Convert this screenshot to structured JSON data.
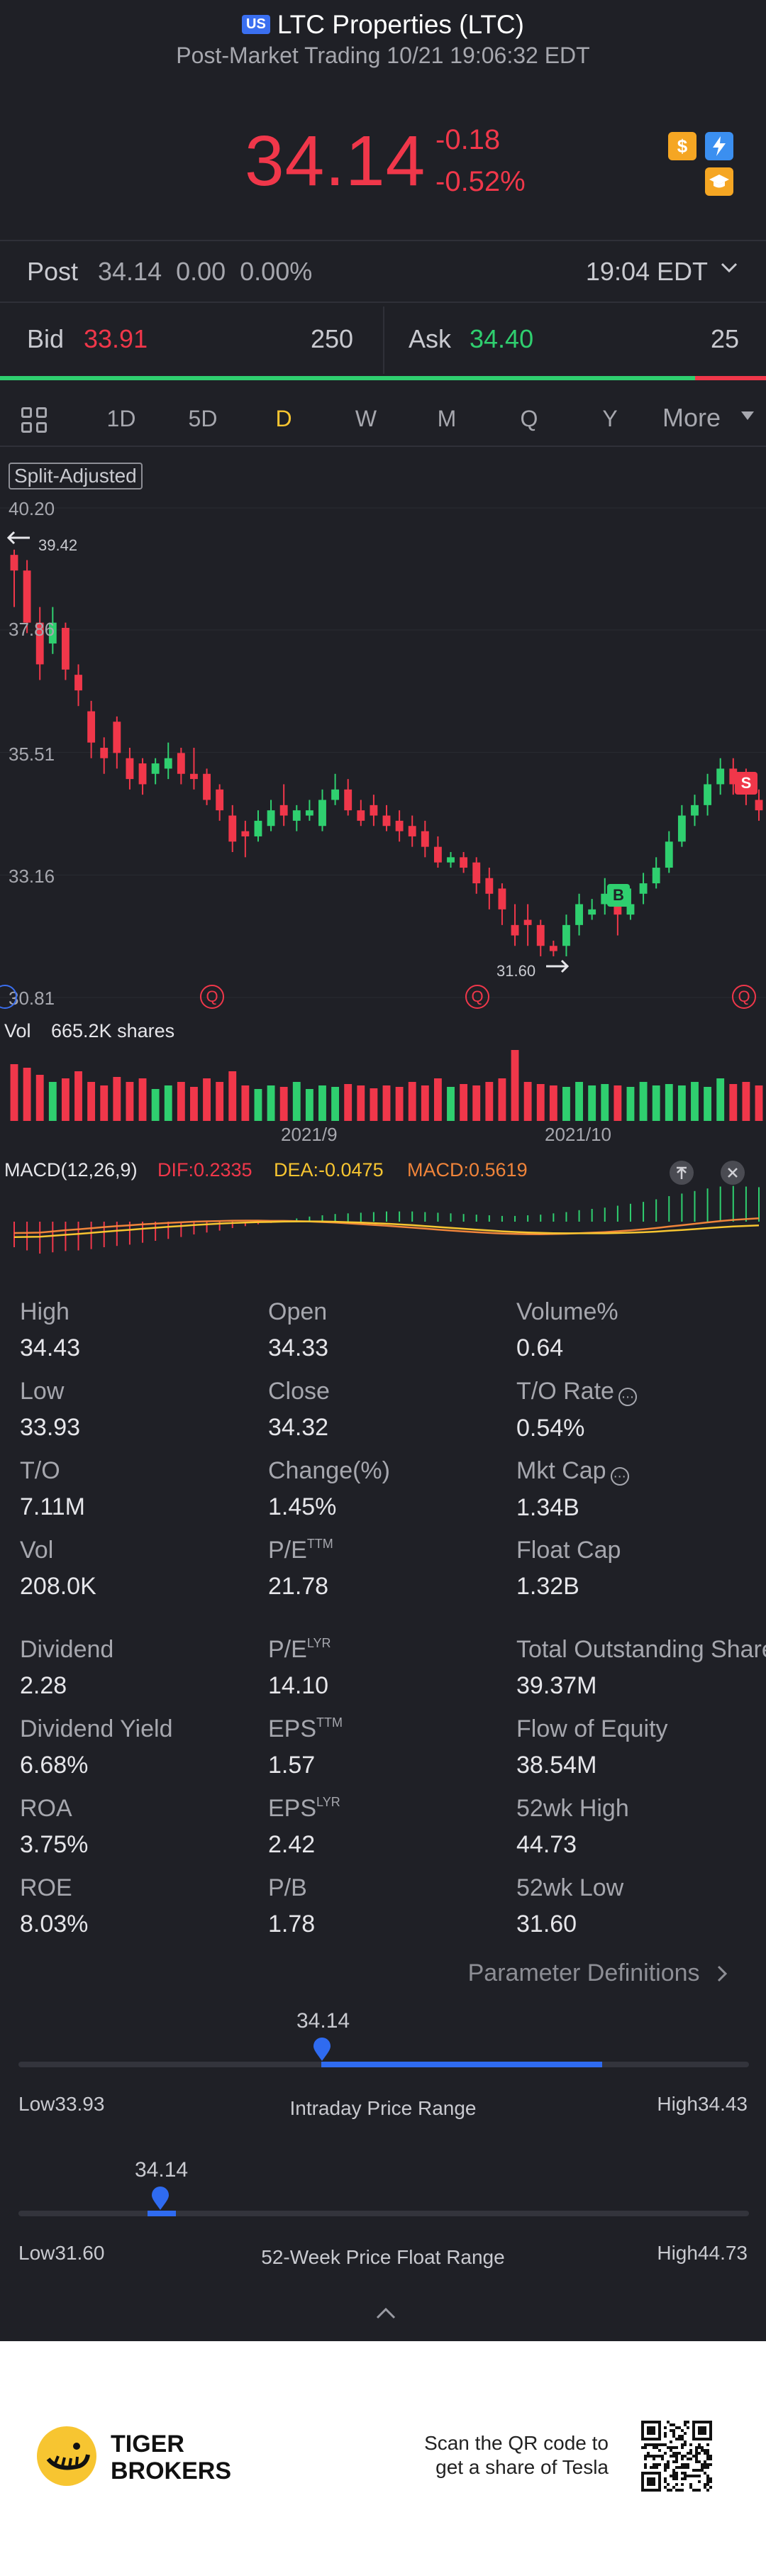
{
  "header": {
    "market_badge": "US",
    "title": "LTC Properties (LTC)",
    "subtitle": "Post-Market Trading 10/21 19:06:32 EDT",
    "price": "34.14",
    "change": "-0.18",
    "change_pct": "-0.52%",
    "icons": [
      "dollar-icon",
      "bolt-icon",
      "education-icon"
    ]
  },
  "post": {
    "label": "Post",
    "values": "34.14  0.00  0.00%",
    "time": "19:04 EDT"
  },
  "quote": {
    "bid_label": "Bid",
    "bid_price": "33.91",
    "bid_size": "250",
    "ask_label": "Ask",
    "ask_price": "34.40",
    "ask_size": "25"
  },
  "tabs": {
    "items": [
      "1D",
      "5D",
      "D",
      "W",
      "M",
      "Q",
      "Y"
    ],
    "active": "D",
    "more": "More"
  },
  "chart": {
    "split_label": "Split-Adjusted",
    "y_ticks": [
      "40.20",
      "37.86",
      "35.51",
      "33.16",
      "30.81"
    ],
    "high_mark": "39.42",
    "low_mark": "31.60",
    "signal_buy": "B",
    "signal_sell": "S",
    "event_marker": "Q",
    "vol_label": "Vol",
    "vol_value": "665.2K shares",
    "x_labels": [
      "2021/9",
      "2021/10"
    ],
    "macd_label": "MACD(12,26,9)",
    "dif": "DIF:0.2335",
    "dea": "DEA:-0.0475",
    "macd": "MACD:0.5619"
  },
  "chart_data": {
    "type": "candlestick",
    "ylim": [
      30.81,
      40.2
    ],
    "y_ticks": [
      40.2,
      37.86,
      35.51,
      33.16,
      30.81
    ],
    "x_labels": [
      "2021/9",
      "2021/10"
    ],
    "candles": [
      [
        39.3,
        39.0,
        39.4,
        38.3
      ],
      [
        39.0,
        38.0,
        39.2,
        37.8
      ],
      [
        38.0,
        37.2,
        38.3,
        36.9
      ],
      [
        37.6,
        38.0,
        38.3,
        37.4
      ],
      [
        37.9,
        37.1,
        38.0,
        36.9
      ],
      [
        37.0,
        36.7,
        37.2,
        36.4
      ],
      [
        36.3,
        35.7,
        36.5,
        35.4
      ],
      [
        35.6,
        35.4,
        35.8,
        35.1
      ],
      [
        36.1,
        35.5,
        36.2,
        35.2
      ],
      [
        35.4,
        35.0,
        35.6,
        34.8
      ],
      [
        35.3,
        34.9,
        35.4,
        34.7
      ],
      [
        35.1,
        35.3,
        35.4,
        34.9
      ],
      [
        35.2,
        35.4,
        35.7,
        35.0
      ],
      [
        35.5,
        35.1,
        35.6,
        34.9
      ],
      [
        35.1,
        35.0,
        35.6,
        34.8
      ],
      [
        35.1,
        34.6,
        35.2,
        34.5
      ],
      [
        34.8,
        34.4,
        34.9,
        34.2
      ],
      [
        34.3,
        33.8,
        34.5,
        33.6
      ],
      [
        34.0,
        33.9,
        34.2,
        33.5
      ],
      [
        33.9,
        34.2,
        34.4,
        33.8
      ],
      [
        34.1,
        34.4,
        34.6,
        34.0
      ],
      [
        34.5,
        34.3,
        34.9,
        34.1
      ],
      [
        34.2,
        34.4,
        34.5,
        34.0
      ],
      [
        34.3,
        34.4,
        34.6,
        34.2
      ],
      [
        34.1,
        34.6,
        34.8,
        34.0
      ],
      [
        34.6,
        34.8,
        35.1,
        34.5
      ],
      [
        34.8,
        34.4,
        35.0,
        34.3
      ],
      [
        34.4,
        34.2,
        34.6,
        34.1
      ],
      [
        34.5,
        34.3,
        34.7,
        34.1
      ],
      [
        34.3,
        34.1,
        34.5,
        34.0
      ],
      [
        34.2,
        34.0,
        34.4,
        33.8
      ],
      [
        34.1,
        33.9,
        34.3,
        33.7
      ],
      [
        34.0,
        33.7,
        34.2,
        33.5
      ],
      [
        33.7,
        33.4,
        33.9,
        33.3
      ],
      [
        33.4,
        33.5,
        33.6,
        33.3
      ],
      [
        33.5,
        33.3,
        33.6,
        33.2
      ],
      [
        33.4,
        33.0,
        33.5,
        32.8
      ],
      [
        33.1,
        32.8,
        33.3,
        32.5
      ],
      [
        32.9,
        32.5,
        33.0,
        32.2
      ],
      [
        32.2,
        32.0,
        32.6,
        31.8
      ],
      [
        32.3,
        32.2,
        32.6,
        31.8
      ],
      [
        32.2,
        31.8,
        32.3,
        31.6
      ],
      [
        31.8,
        31.7,
        31.9,
        31.6
      ],
      [
        31.8,
        32.2,
        32.4,
        31.6
      ],
      [
        32.2,
        32.6,
        32.8,
        32.0
      ],
      [
        32.4,
        32.5,
        32.7,
        32.3
      ],
      [
        32.6,
        32.8,
        33.1,
        32.4
      ],
      [
        32.6,
        32.4,
        32.8,
        32.0
      ],
      [
        32.4,
        32.6,
        32.9,
        32.3
      ],
      [
        32.8,
        33.0,
        33.2,
        32.6
      ],
      [
        33.0,
        33.3,
        33.5,
        32.9
      ],
      [
        33.3,
        33.8,
        34.0,
        33.2
      ],
      [
        33.8,
        34.3,
        34.5,
        33.7
      ],
      [
        34.3,
        34.5,
        34.7,
        34.1
      ],
      [
        34.5,
        34.9,
        35.1,
        34.3
      ],
      [
        34.9,
        35.2,
        35.4,
        34.7
      ],
      [
        35.2,
        34.9,
        35.4,
        34.7
      ],
      [
        35.0,
        34.8,
        35.2,
        34.5
      ],
      [
        34.6,
        34.4,
        34.8,
        34.2
      ]
    ],
    "volume": [
      0.8,
      0.75,
      0.65,
      0.55,
      0.6,
      0.7,
      0.55,
      0.5,
      0.62,
      0.55,
      0.6,
      0.45,
      0.5,
      0.55,
      0.48,
      0.6,
      0.55,
      0.7,
      0.5,
      0.45,
      0.5,
      0.48,
      0.55,
      0.45,
      0.5,
      0.48,
      0.52,
      0.5,
      0.46,
      0.5,
      0.48,
      0.55,
      0.5,
      0.6,
      0.48,
      0.52,
      0.5,
      0.55,
      0.6,
      1.0,
      0.55,
      0.52,
      0.5,
      0.48,
      0.55,
      0.5,
      0.52,
      0.5,
      0.48,
      0.55,
      0.5,
      0.52,
      0.5,
      0.55,
      0.48,
      0.6,
      0.52,
      0.55,
      0.5
    ],
    "macd_hist": [
      -0.4,
      -0.45,
      -0.5,
      -0.48,
      -0.46,
      -0.45,
      -0.43,
      -0.4,
      -0.38,
      -0.36,
      -0.33,
      -0.3,
      -0.27,
      -0.24,
      -0.2,
      -0.17,
      -0.14,
      -0.1,
      -0.07,
      -0.04,
      -0.02,
      0.02,
      0.05,
      0.08,
      0.1,
      0.12,
      0.13,
      0.14,
      0.15,
      0.16,
      0.16,
      0.16,
      0.15,
      0.14,
      0.13,
      0.12,
      0.11,
      0.1,
      0.09,
      0.09,
      0.1,
      0.11,
      0.13,
      0.15,
      0.18,
      0.2,
      0.22,
      0.25,
      0.28,
      0.31,
      0.35,
      0.4,
      0.44,
      0.48,
      0.52,
      0.55,
      0.56,
      0.55,
      0.54
    ],
    "high_mark": 39.42,
    "low_mark": 31.6
  },
  "stats": [
    {
      "key": "High",
      "value": "34.43"
    },
    {
      "key": "Open",
      "value": "34.33"
    },
    {
      "key": "Volume%",
      "value": "0.64"
    },
    {
      "key": "Low",
      "value": "33.93"
    },
    {
      "key": "Close",
      "value": "34.32"
    },
    {
      "key": "T/O Rate",
      "value": "0.54%",
      "info": true
    },
    {
      "key": "T/O",
      "value": "7.11M"
    },
    {
      "key": "Change(%)",
      "value": "1.45%"
    },
    {
      "key": "Mkt Cap",
      "value": "1.34B",
      "info": true
    },
    {
      "key": "Vol",
      "value": "208.0K"
    },
    {
      "key": "P/E",
      "sup": "TTM",
      "value": "21.78"
    },
    {
      "key": "Float Cap",
      "value": "1.32B"
    },
    {
      "key": "Dividend",
      "value": "2.28"
    },
    {
      "key": "P/E",
      "sup": "LYR",
      "value": "14.10"
    },
    {
      "key": "Total Outstanding Shares",
      "value": "39.37M"
    },
    {
      "key": "Dividend Yield",
      "value": "6.68%"
    },
    {
      "key": "EPS",
      "sup": "TTM",
      "value": "1.57"
    },
    {
      "key": "Flow of Equity",
      "value": "38.54M"
    },
    {
      "key": "ROA",
      "value": "3.75%"
    },
    {
      "key": "EPS",
      "sup": "LYR",
      "value": "2.42"
    },
    {
      "key": "52wk High",
      "value": "44.73"
    },
    {
      "key": "ROE",
      "value": "8.03%"
    },
    {
      "key": "P/B",
      "value": "1.78"
    },
    {
      "key": "52wk Low",
      "value": "31.60"
    }
  ],
  "param_def": "Parameter Definitions",
  "intraday_range": {
    "current": "34.14",
    "low": "Low33.93",
    "high": "High34.43",
    "title": "Intraday Price Range",
    "low_num": 33.93,
    "high_num": 34.43,
    "cur_num": 34.14,
    "fill_start": 0.42,
    "fill_end": 0.85
  },
  "week52_range": {
    "current": "34.14",
    "low": "Low31.60",
    "high": "High44.73",
    "title": "52-Week Price Float Range",
    "low_num": 31.6,
    "high_num": 44.73,
    "cur_num": 34.14
  },
  "footer": {
    "brand_line1": "TIGER",
    "brand_line2": "BROKERS",
    "qr_text1": "Scan the QR code to",
    "qr_text2": "get a share of Tesla"
  }
}
